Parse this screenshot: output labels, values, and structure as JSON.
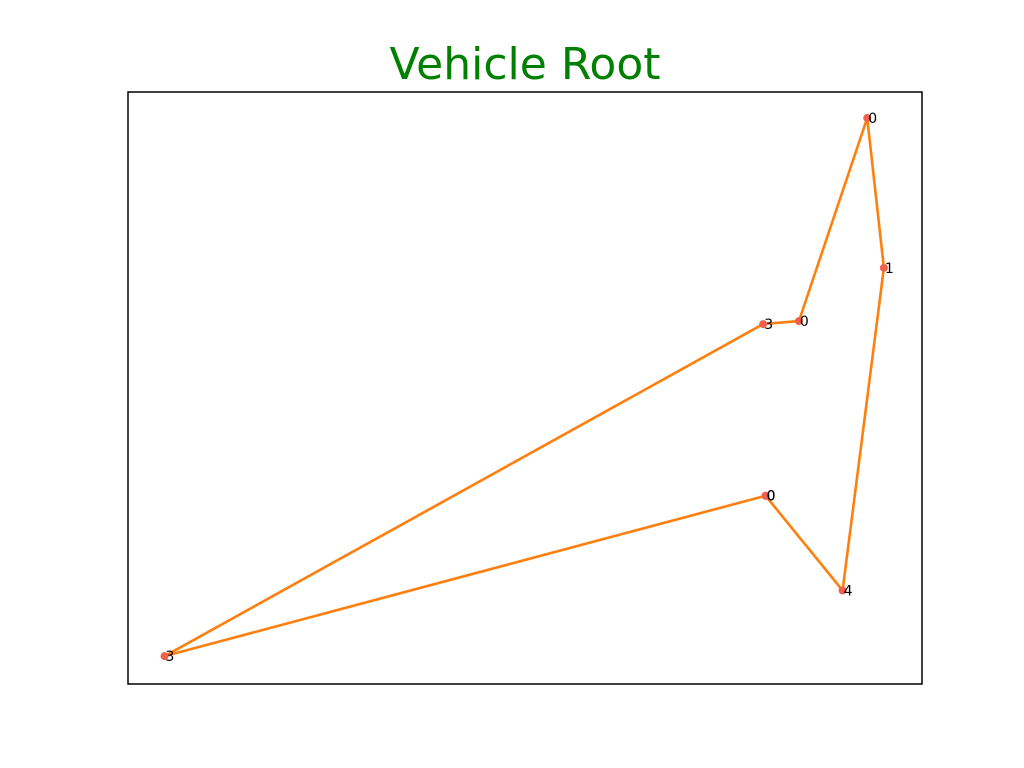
{
  "chart_data": {
    "type": "line",
    "title": "Vehicle Root",
    "xlabel": "",
    "ylabel": "",
    "xlim": [
      0,
      100
    ],
    "ylim": [
      0,
      100
    ],
    "grid": false,
    "axes_ticks": false,
    "colors": {
      "title": "#008000",
      "route": "#ff7f0e",
      "node": "#f0604b",
      "frame": "#000000"
    },
    "series": [
      {
        "points": [
          {
            "x": 80.3,
            "y": 31.8,
            "label": "0"
          },
          {
            "x": 90.0,
            "y": 15.8,
            "label": "4"
          },
          {
            "x": 95.2,
            "y": 70.3,
            "label": "1"
          },
          {
            "x": 93.1,
            "y": 95.6,
            "label": "0"
          },
          {
            "x": 84.5,
            "y": 61.3,
            "label": "0"
          },
          {
            "x": 80.0,
            "y": 60.8,
            "label": "3"
          },
          {
            "x": 4.6,
            "y": 4.7,
            "label": "3"
          },
          {
            "x": 80.3,
            "y": 31.8,
            "label": "0"
          }
        ]
      }
    ]
  }
}
